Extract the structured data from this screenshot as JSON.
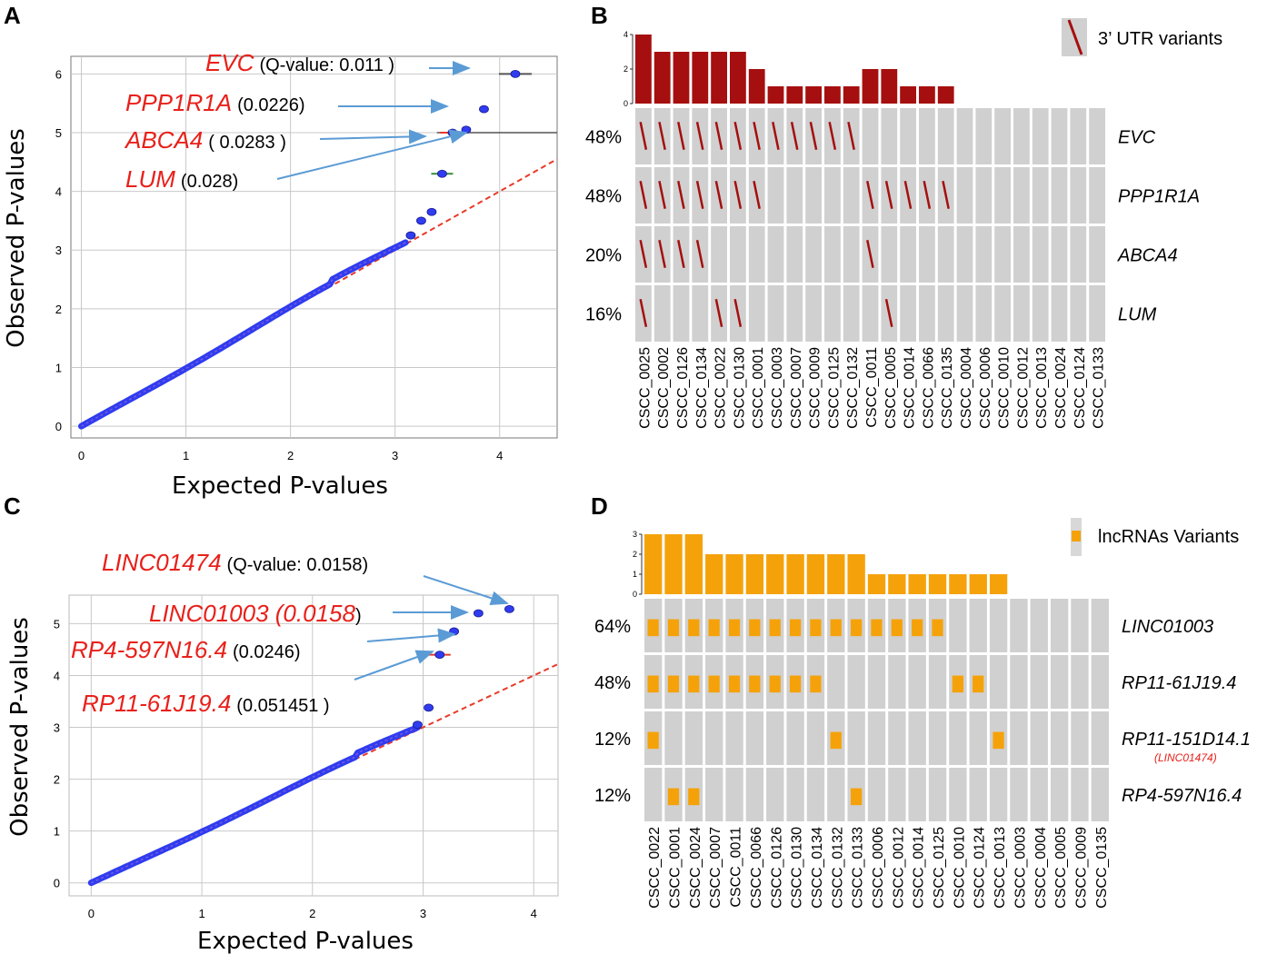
{
  "panels": {
    "a": "A",
    "b": "B",
    "c": "C",
    "d": "D"
  },
  "colors": {
    "utr": "#a50f0f",
    "lnc": "#f5a20a",
    "point": "#2f3cf0",
    "diag": "#e83a2a",
    "tile": "#d0d0d0",
    "gene": "#e8201a",
    "arrow": "#5b9bd5"
  },
  "chart_data": [
    {
      "type": "scatter",
      "panel": "A",
      "title": "",
      "xlabel": "Expected P-values",
      "ylabel": "Observed P-values",
      "xlim": [
        -0.1,
        4.55
      ],
      "ylim": [
        -0.2,
        6.3
      ],
      "x_ticks": [
        "0",
        "1",
        "2",
        "3",
        "4"
      ],
      "y_ticks": [
        "0",
        "1",
        "2",
        "3",
        "4",
        "5",
        "6"
      ],
      "grid": true,
      "hline": 5.0,
      "top_points": [
        {
          "x": 4.15,
          "y": 6.0
        },
        {
          "x": 3.85,
          "y": 5.4
        },
        {
          "x": 3.68,
          "y": 5.05
        },
        {
          "x": 3.55,
          "y": 5.0
        },
        {
          "x": 3.45,
          "y": 4.3
        },
        {
          "x": 3.35,
          "y": 3.65
        },
        {
          "x": 3.25,
          "y": 3.5
        },
        {
          "x": 3.15,
          "y": 3.25
        }
      ],
      "annotations": [
        {
          "gene": "EVC",
          "q": "(Q-value: 0.011 )"
        },
        {
          "gene": "PPP1R1A",
          "q": "(0.0226)"
        },
        {
          "gene": "ABCA4",
          "q": "( 0.0283 )"
        },
        {
          "gene": "LUM",
          "q": "(0.028)"
        }
      ]
    },
    {
      "type": "heatmap",
      "panel": "B",
      "legend": "3’ UTR variants",
      "count_ticks": [
        "0",
        "2",
        "4"
      ],
      "count_max": 4,
      "samples": [
        "CSCC_0025",
        "CSCC_0002",
        "CSCC_0126",
        "CSCC_0134",
        "CSCC_0022",
        "CSCC_0130",
        "CSCC_0001",
        "CSCC_0003",
        "CSCC_0007",
        "CSCC_0009",
        "CSCC_0125",
        "CSCC_0132",
        "CSCC_0011",
        "CSCC_0005",
        "CSCC_0014",
        "CSCC_0066",
        "CSCC_0135",
        "CSCC_0004",
        "CSCC_0006",
        "CSCC_0010",
        "CSCC_0012",
        "CSCC_0013",
        "CSCC_0024",
        "CSCC_0124",
        "CSCC_0133"
      ],
      "counts": [
        4,
        3,
        3,
        3,
        3,
        3,
        2,
        1,
        1,
        1,
        1,
        1,
        2,
        2,
        1,
        1,
        1,
        0,
        0,
        0,
        0,
        0,
        0,
        0,
        0
      ],
      "rows": [
        {
          "gene": "EVC",
          "pct": "48%",
          "cells": [
            1,
            1,
            1,
            1,
            1,
            1,
            1,
            1,
            1,
            1,
            1,
            1,
            0,
            0,
            0,
            0,
            0,
            0,
            0,
            0,
            0,
            0,
            0,
            0,
            0
          ]
        },
        {
          "gene": "PPP1R1A",
          "pct": "48%",
          "cells": [
            1,
            1,
            1,
            1,
            1,
            1,
            1,
            0,
            0,
            0,
            0,
            0,
            1,
            1,
            1,
            1,
            1,
            0,
            0,
            0,
            0,
            0,
            0,
            0,
            0
          ]
        },
        {
          "gene": "ABCA4",
          "pct": "20%",
          "cells": [
            1,
            1,
            1,
            1,
            0,
            0,
            0,
            0,
            0,
            0,
            0,
            0,
            1,
            0,
            0,
            0,
            0,
            0,
            0,
            0,
            0,
            0,
            0,
            0,
            0
          ]
        },
        {
          "gene": "LUM",
          "pct": "16%",
          "cells": [
            1,
            0,
            0,
            0,
            1,
            1,
            0,
            0,
            0,
            0,
            0,
            0,
            0,
            1,
            0,
            0,
            0,
            0,
            0,
            0,
            0,
            0,
            0,
            0,
            0
          ]
        }
      ]
    },
    {
      "type": "scatter",
      "panel": "C",
      "title": "",
      "xlabel": "Expected P-values",
      "ylabel": "Observed P-values",
      "xlim": [
        -0.2,
        4.22
      ],
      "ylim": [
        -0.25,
        5.55
      ],
      "x_ticks": [
        "0",
        "1",
        "2",
        "3",
        "4"
      ],
      "y_ticks": [
        "0",
        "1",
        "2",
        "3",
        "4",
        "5"
      ],
      "grid": true,
      "top_points": [
        {
          "x": 3.78,
          "y": 5.28
        },
        {
          "x": 3.5,
          "y": 5.2
        },
        {
          "x": 3.28,
          "y": 4.85
        },
        {
          "x": 3.15,
          "y": 4.4
        },
        {
          "x": 3.05,
          "y": 3.38
        },
        {
          "x": 2.95,
          "y": 3.05
        }
      ],
      "annotations": [
        {
          "gene": "LINC01474",
          "q": "(Q-value: 0.0158)"
        },
        {
          "gene": "LINC01003 (0.0158",
          "q": ")"
        },
        {
          "gene": "RP4-597N16.4",
          "q": "(0.0246)"
        },
        {
          "gene": "RP11-61J19.4",
          "q": "(0.051451 )"
        }
      ]
    },
    {
      "type": "heatmap",
      "panel": "D",
      "legend": "lncRNAs Variants",
      "count_ticks": [
        "0",
        "1",
        "2",
        "3"
      ],
      "count_max": 3,
      "samples": [
        "CSCC_0022",
        "CSCC_0001",
        "CSCC_0024",
        "CSCC_0007",
        "CSCC_0011",
        "CSCC_0066",
        "CSCC_0126",
        "CSCC_0130",
        "CSCC_0134",
        "CSCC_0132",
        "CSCC_0133",
        "CSCC_0006",
        "CSCC_0012",
        "CSCC_0014",
        "CSCC_0125",
        "CSCC_0010",
        "CSCC_0124",
        "CSCC_0013",
        "CSCC_0003",
        "CSCC_0004",
        "CSCC_0005",
        "CSCC_0009",
        "CSCC_0135"
      ],
      "counts": [
        3,
        3,
        3,
        2,
        2,
        2,
        2,
        2,
        2,
        2,
        2,
        1,
        1,
        1,
        1,
        1,
        1,
        1,
        0,
        0,
        0,
        0,
        0
      ],
      "rows": [
        {
          "gene": "LINC01003",
          "pct": "64%",
          "sub": "",
          "cells": [
            1,
            1,
            1,
            1,
            1,
            1,
            1,
            1,
            1,
            1,
            1,
            1,
            1,
            1,
            1,
            0,
            0,
            0,
            0,
            0,
            0,
            0,
            0
          ]
        },
        {
          "gene": "RP11-61J19.4",
          "pct": "48%",
          "sub": "",
          "cells": [
            1,
            1,
            1,
            1,
            1,
            1,
            1,
            1,
            1,
            0,
            0,
            0,
            0,
            0,
            0,
            1,
            1,
            0,
            0,
            0,
            0,
            0,
            0
          ]
        },
        {
          "gene": "RP11-151D14.1",
          "pct": "12%",
          "sub": "(LINC01474)",
          "cells": [
            1,
            0,
            0,
            0,
            0,
            0,
            0,
            0,
            0,
            1,
            0,
            0,
            0,
            0,
            0,
            0,
            0,
            1,
            0,
            0,
            0,
            0,
            0
          ]
        },
        {
          "gene": "RP4-597N16.4",
          "pct": "12%",
          "sub": "",
          "cells": [
            0,
            1,
            1,
            0,
            0,
            0,
            0,
            0,
            0,
            0,
            1,
            0,
            0,
            0,
            0,
            0,
            0,
            0,
            0,
            0,
            0,
            0,
            0
          ]
        }
      ]
    }
  ]
}
